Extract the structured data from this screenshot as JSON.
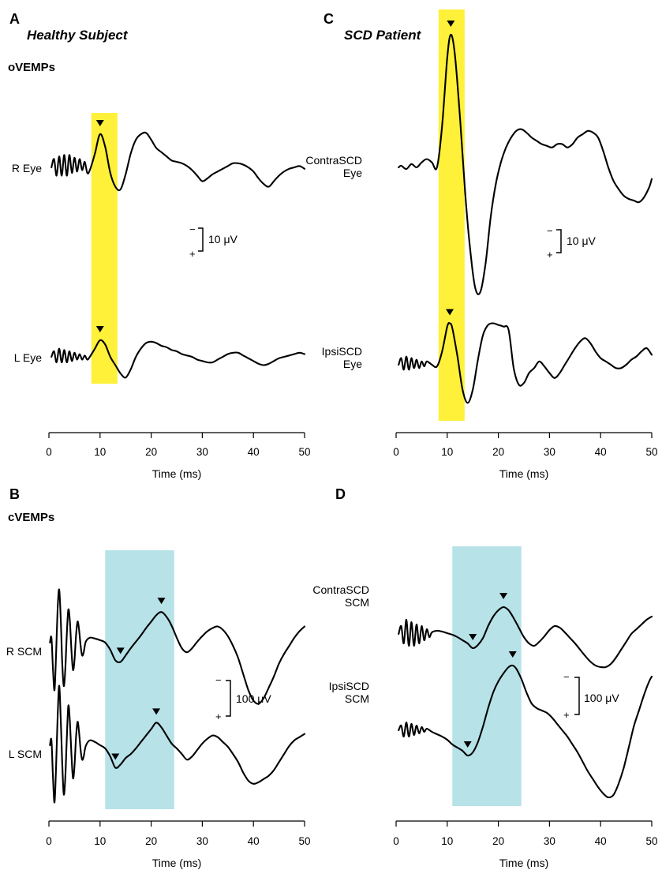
{
  "colors": {
    "yellow_window": "#fff03a",
    "blue_window": "#b6e2e8",
    "trace": "#000000"
  },
  "chart_data": [
    {
      "panel": "A",
      "type": "line",
      "title": "Healthy Subject",
      "subtitle": "oVEMPs",
      "xlabel": "Time (ms)",
      "xlim": [
        0,
        50
      ],
      "xticks": [
        0,
        10,
        20,
        30,
        40,
        50
      ],
      "window_color": "yellow_window",
      "window_ms": [
        8.3,
        13.4
      ],
      "scale_label": "10 μV",
      "scale_minus": "−",
      "scale_plus": "+",
      "series": [
        {
          "name": "R Eye",
          "label_lines": [
            "R Eye"
          ],
          "x": [
            0.5,
            1.0,
            1.5,
            2.0,
            2.5,
            3.0,
            3.5,
            4.0,
            4.5,
            5.0,
            5.5,
            6.0,
            6.5,
            7.0,
            7.5,
            8.0,
            9.0,
            10.0,
            11.0,
            12.0,
            13.0,
            14.0,
            15.0,
            16.0,
            17.0,
            18.0,
            19.0,
            20.0,
            21.0,
            22.0,
            23.0,
            24.0,
            25.0,
            26.0,
            27.0,
            28.0,
            29.0,
            30.0,
            31.0,
            32.0,
            33.0,
            34.0,
            35.0,
            36.0,
            37.0,
            38.0,
            39.0,
            40.0,
            41.0,
            42.0,
            43.0,
            44.0,
            45.0,
            46.0,
            47.0,
            48.0,
            49.0,
            50.0
          ],
          "y": [
            0,
            6,
            -6,
            8,
            -6,
            9,
            -6,
            9,
            -4,
            7,
            -3,
            6,
            -2,
            4,
            -4,
            -2,
            10,
            24,
            15,
            -4,
            -14,
            -16,
            -5,
            10,
            20,
            24,
            25,
            20,
            14,
            11,
            8,
            5,
            4,
            3,
            1,
            -2,
            -6,
            -10,
            -8,
            -5,
            -3,
            -1,
            1,
            3,
            3,
            2,
            0,
            -3,
            -8,
            -12,
            -14,
            -10,
            -6,
            -3,
            -1,
            0,
            1,
            -1
          ]
        },
        {
          "name": "L Eye",
          "label_lines": [
            "L Eye"
          ],
          "x": [
            0.5,
            1.0,
            1.5,
            2.0,
            2.5,
            3.0,
            3.5,
            4.0,
            4.5,
            5.0,
            5.5,
            6.0,
            6.5,
            7.0,
            7.5,
            8.0,
            9.0,
            10.0,
            11.0,
            12.0,
            13.0,
            14.0,
            15.0,
            16.0,
            17.0,
            18.0,
            19.0,
            20.0,
            21.0,
            22.0,
            23.0,
            24.0,
            25.0,
            26.0,
            27.0,
            28.0,
            29.0,
            30.0,
            31.0,
            32.0,
            33.0,
            34.0,
            35.0,
            36.0,
            37.0,
            38.0,
            39.0,
            40.0,
            41.0,
            42.0,
            43.0,
            44.0,
            45.0,
            46.0,
            47.0,
            48.0,
            49.0,
            50.0
          ],
          "y": [
            0,
            4,
            -4,
            6,
            -4,
            5,
            -4,
            4,
            -3,
            3,
            -2,
            2,
            -2,
            1,
            -2,
            0,
            6,
            12,
            9,
            0,
            -6,
            -12,
            -15,
            -9,
            0,
            6,
            10,
            11,
            10,
            8,
            7,
            5,
            4,
            2,
            1,
            0,
            -2,
            -3,
            -4,
            -4,
            -2,
            0,
            2,
            3,
            3,
            1,
            -1,
            -3,
            -5,
            -6,
            -5,
            -3,
            -1,
            0,
            1,
            2,
            3,
            2
          ]
        }
      ]
    },
    {
      "panel": "B",
      "type": "line",
      "title": "",
      "subtitle": "cVEMPs",
      "xlabel": "Time (ms)",
      "xlim": [
        0,
        50
      ],
      "xticks": [
        0,
        10,
        20,
        30,
        40,
        50
      ],
      "window_color": "blue_window",
      "window_ms": [
        11.0,
        24.5
      ],
      "scale_label": "100 μV",
      "scale_minus": "−",
      "scale_plus": "+",
      "series": [
        {
          "name": "R SCM",
          "label_lines": [
            "R SCM"
          ],
          "x": [
            0.2,
            0.5,
            0.8,
            1.1,
            1.4,
            1.7,
            2.0,
            2.3,
            2.6,
            2.9,
            3.2,
            3.5,
            3.8,
            4.1,
            4.4,
            4.7,
            5.0,
            5.3,
            5.6,
            5.9,
            6.2,
            6.5,
            6.8,
            7.2,
            8.0,
            9.0,
            10.0,
            11.0,
            12.0,
            13.0,
            14.0,
            15.0,
            16.0,
            17.0,
            18.0,
            19.0,
            20.0,
            21.0,
            22.0,
            23.0,
            24.0,
            25.0,
            26.0,
            27.0,
            28.0,
            29.0,
            30.0,
            31.0,
            32.0,
            33.0,
            34.0,
            35.0,
            36.0,
            37.0,
            38.0,
            39.0,
            40.0,
            41.0,
            42.0,
            43.0,
            44.0,
            45.0,
            46.0,
            47.0,
            48.0,
            49.0,
            50.0
          ],
          "y": [
            4,
            10,
            -30,
            -55,
            -10,
            45,
            70,
            35,
            -20,
            -50,
            -30,
            15,
            45,
            30,
            -5,
            -30,
            -18,
            12,
            30,
            20,
            0,
            -12,
            -8,
            5,
            10,
            9,
            7,
            4,
            -5,
            -18,
            -20,
            -12,
            -3,
            5,
            13,
            22,
            30,
            38,
            42,
            36,
            25,
            10,
            -3,
            -8,
            -3,
            5,
            12,
            18,
            22,
            24,
            20,
            12,
            0,
            -15,
            -35,
            -55,
            -68,
            -72,
            -65,
            -52,
            -38,
            -22,
            -10,
            0,
            10,
            18,
            24
          ]
        },
        {
          "name": "L SCM",
          "label_lines": [
            "L SCM"
          ],
          "x": [
            0.2,
            0.5,
            0.8,
            1.1,
            1.4,
            1.7,
            2.0,
            2.3,
            2.6,
            2.9,
            3.2,
            3.5,
            3.8,
            4.1,
            4.4,
            4.7,
            5.0,
            5.3,
            5.6,
            5.9,
            6.2,
            6.5,
            6.8,
            7.2,
            8.0,
            9.0,
            10.0,
            11.0,
            12.0,
            13.0,
            14.0,
            15.0,
            16.0,
            17.0,
            18.0,
            19.0,
            20.0,
            21.0,
            22.0,
            23.0,
            24.0,
            25.0,
            26.0,
            27.0,
            28.0,
            29.0,
            30.0,
            31.0,
            32.0,
            33.0,
            34.0,
            35.0,
            36.0,
            37.0,
            38.0,
            39.0,
            40.0,
            41.0,
            42.0,
            43.0,
            44.0,
            45.0,
            46.0,
            47.0,
            48.0,
            49.0,
            50.0
          ],
          "y": [
            6,
            12,
            -35,
            -65,
            -20,
            40,
            80,
            40,
            -15,
            -55,
            -35,
            15,
            55,
            35,
            -5,
            -35,
            -20,
            15,
            35,
            22,
            0,
            -12,
            -8,
            5,
            12,
            10,
            6,
            2,
            -8,
            -22,
            -18,
            -10,
            -5,
            2,
            10,
            18,
            26,
            34,
            28,
            18,
            8,
            2,
            -5,
            -12,
            -8,
            0,
            8,
            14,
            18,
            16,
            10,
            4,
            -5,
            -15,
            -28,
            -38,
            -42,
            -40,
            -36,
            -32,
            -25,
            -15,
            -5,
            5,
            12,
            16,
            20
          ]
        }
      ]
    },
    {
      "panel": "C",
      "type": "line",
      "title": "SCD Patient",
      "subtitle": "",
      "xlabel": "Time (ms)",
      "xlim": [
        0,
        50
      ],
      "xticks": [
        0,
        10,
        20,
        30,
        40,
        50
      ],
      "window_color": "yellow_window",
      "window_ms": [
        8.3,
        13.4
      ],
      "scale_label": "10 μV",
      "scale_minus": "−",
      "scale_plus": "+",
      "series": [
        {
          "name": "ContraSCD Eye",
          "label_lines": [
            "ContraSCD",
            "Eye"
          ],
          "x": [
            0.5,
            1.0,
            2.0,
            3.0,
            4.0,
            5.0,
            6.0,
            7.0,
            8.0,
            9.0,
            10.0,
            10.7,
            11.5,
            12.5,
            13.5,
            14.5,
            15.5,
            16.5,
            17.5,
            18.5,
            19.5,
            20.5,
            21.5,
            22.5,
            23.5,
            24.5,
            25.5,
            26.5,
            27.5,
            28.5,
            29.5,
            30.5,
            31.5,
            32.5,
            33.5,
            34.5,
            35.5,
            36.5,
            37.5,
            38.5,
            39.5,
            40.5,
            41.5,
            42.5,
            43.5,
            44.5,
            45.5,
            46.5,
            47.5,
            48.5,
            49.5,
            50.0
          ],
          "y": [
            0,
            1,
            -1,
            2,
            0,
            3,
            5,
            3,
            0,
            25,
            66,
            80,
            68,
            30,
            -15,
            -50,
            -73,
            -75,
            -58,
            -30,
            -10,
            3,
            12,
            18,
            22,
            23,
            21,
            18,
            16,
            14,
            13,
            12,
            14,
            14,
            12,
            14,
            18,
            20,
            22,
            21,
            18,
            10,
            0,
            -8,
            -13,
            -17,
            -19,
            -20,
            -21,
            -18,
            -12,
            -7
          ]
        },
        {
          "name": "IpsiSCD Eye",
          "label_lines": [
            "IpsiSCD",
            "Eye"
          ],
          "x": [
            0.5,
            1.0,
            1.5,
            2.0,
            2.5,
            3.0,
            3.5,
            4.0,
            4.5,
            5.0,
            5.5,
            6.0,
            7.0,
            8.0,
            9.0,
            10.0,
            10.5,
            11.0,
            12.0,
            13.0,
            14.0,
            15.0,
            16.0,
            17.0,
            18.0,
            19.0,
            20.0,
            21.0,
            22.0,
            23.0,
            24.0,
            25.0,
            26.0,
            27.0,
            28.0,
            29.0,
            30.0,
            31.0,
            32.0,
            33.0,
            34.0,
            35.0,
            36.0,
            37.0,
            38.0,
            39.0,
            40.0,
            41.0,
            42.0,
            43.0,
            44.0,
            45.0,
            46.0,
            47.0,
            48.0,
            49.0,
            50.0
          ],
          "y": [
            0,
            4,
            -3,
            5,
            -3,
            4,
            -2,
            3,
            -2,
            2,
            -1,
            2,
            0,
            -1,
            8,
            23,
            25,
            22,
            5,
            -15,
            -23,
            -15,
            3,
            18,
            24,
            25,
            24,
            23,
            21,
            -2,
            -12,
            -11,
            -5,
            -2,
            2,
            -1,
            -5,
            -8,
            -5,
            0,
            5,
            10,
            14,
            16,
            13,
            8,
            4,
            2,
            0,
            -2,
            -2,
            0,
            3,
            5,
            8,
            10,
            6
          ]
        }
      ]
    },
    {
      "panel": "D",
      "type": "line",
      "title": "",
      "subtitle": "",
      "xlabel": "Time (ms)",
      "xlim": [
        0,
        50
      ],
      "xticks": [
        0,
        10,
        20,
        30,
        40,
        50
      ],
      "window_color": "blue_window",
      "window_ms": [
        11.0,
        24.5
      ],
      "scale_label": "100 μV",
      "scale_minus": "−",
      "scale_plus": "+",
      "series": [
        {
          "name": "ContraSCD SCM",
          "label_lines": [
            "ContraSCD",
            "SCM"
          ],
          "x": [
            0.5,
            1.0,
            1.5,
            2.0,
            2.5,
            3.0,
            3.5,
            4.0,
            4.5,
            5.0,
            5.5,
            6.0,
            6.5,
            7.0,
            8.0,
            9.0,
            10.0,
            11.0,
            12.0,
            13.0,
            14.0,
            15.0,
            16.0,
            17.0,
            18.0,
            19.0,
            20.0,
            21.0,
            22.0,
            23.0,
            24.0,
            25.0,
            26.0,
            27.0,
            28.0,
            29.0,
            30.0,
            31.0,
            32.0,
            33.0,
            34.0,
            35.0,
            36.0,
            37.0,
            38.0,
            39.0,
            40.0,
            41.0,
            42.0,
            43.0,
            44.0,
            45.0,
            46.0,
            47.0,
            48.0,
            49.0,
            50.0
          ],
          "y": [
            0,
            10,
            -12,
            18,
            -15,
            15,
            -15,
            12,
            -12,
            10,
            -8,
            6,
            -4,
            2,
            4,
            3,
            1,
            -1,
            -4,
            -8,
            -12,
            -18,
            -14,
            -5,
            10,
            22,
            30,
            34,
            30,
            20,
            8,
            -4,
            -12,
            -15,
            -10,
            -3,
            5,
            10,
            8,
            2,
            -5,
            -12,
            -20,
            -28,
            -35,
            -40,
            -42,
            -42,
            -38,
            -30,
            -20,
            -10,
            0,
            6,
            12,
            18,
            22
          ]
        },
        {
          "name": "IpsiSCD SCM",
          "label_lines": [
            "IpsiSCD",
            "SCM"
          ],
          "x": [
            0.5,
            1.0,
            1.5,
            2.0,
            2.5,
            3.0,
            3.5,
            4.0,
            4.5,
            5.0,
            5.5,
            6.0,
            7.0,
            8.0,
            9.0,
            10.0,
            11.0,
            12.0,
            13.0,
            14.0,
            15.0,
            16.0,
            17.0,
            18.0,
            19.0,
            20.0,
            21.0,
            22.0,
            22.8,
            23.5,
            24.5,
            25.5,
            26.5,
            27.5,
            28.5,
            29.5,
            30.5,
            31.5,
            32.5,
            33.5,
            34.5,
            35.5,
            36.5,
            37.5,
            38.5,
            39.5,
            40.5,
            41.5,
            42.5,
            43.5,
            44.5,
            45.5,
            46.5,
            47.5,
            48.5,
            49.5,
            50.0
          ],
          "y": [
            0,
            6,
            -8,
            10,
            -8,
            8,
            -6,
            6,
            -4,
            4,
            -2,
            2,
            -2,
            -5,
            -8,
            -12,
            -18,
            -22,
            -26,
            -32,
            -28,
            -15,
            5,
            28,
            48,
            62,
            72,
            80,
            82,
            78,
            65,
            48,
            34,
            28,
            25,
            22,
            16,
            8,
            0,
            -8,
            -18,
            -28,
            -40,
            -52,
            -62,
            -72,
            -80,
            -85,
            -82,
            -68,
            -48,
            -22,
            5,
            25,
            45,
            62,
            68
          ]
        }
      ]
    }
  ]
}
